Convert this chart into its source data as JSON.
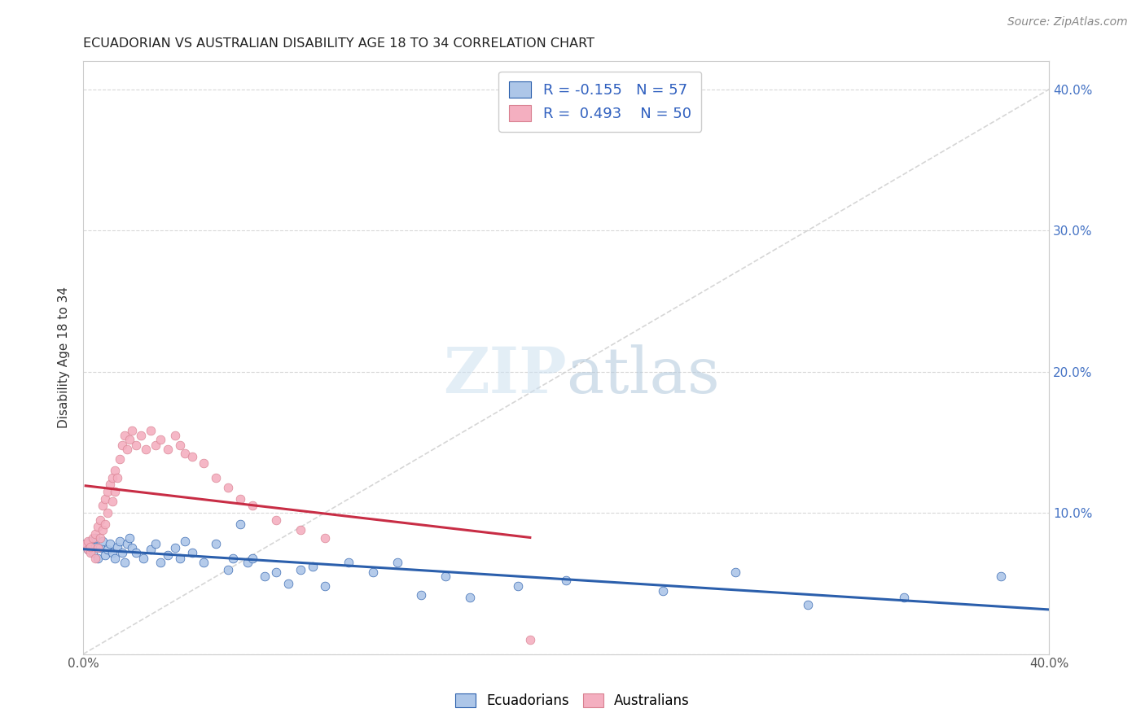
{
  "title": "ECUADORIAN VS AUSTRALIAN DISABILITY AGE 18 TO 34 CORRELATION CHART",
  "source": "Source: ZipAtlas.com",
  "ylabel": "Disability Age 18 to 34",
  "xmin": 0.0,
  "xmax": 0.4,
  "ymin": 0.0,
  "ymax": 0.42,
  "r_ecuadorian": -0.155,
  "n_ecuadorian": 57,
  "r_australian": 0.493,
  "n_australian": 50,
  "color_ecuadorian": "#adc6e8",
  "color_australian": "#f4afc0",
  "line_color_ecuadorian": "#2b5fac",
  "line_color_australian": "#c82d45",
  "legend_text_color": "#3060bf",
  "background_color": "#ffffff",
  "grid_color": "#d8d8d8",
  "ytick_color": "#4472c4",
  "ecuadorian_x": [
    0.001,
    0.002,
    0.003,
    0.004,
    0.005,
    0.005,
    0.006,
    0.007,
    0.008,
    0.009,
    0.01,
    0.011,
    0.012,
    0.013,
    0.014,
    0.015,
    0.016,
    0.017,
    0.018,
    0.019,
    0.02,
    0.022,
    0.025,
    0.028,
    0.03,
    0.032,
    0.035,
    0.038,
    0.04,
    0.042,
    0.045,
    0.05,
    0.055,
    0.06,
    0.062,
    0.065,
    0.068,
    0.07,
    0.075,
    0.08,
    0.085,
    0.09,
    0.095,
    0.1,
    0.11,
    0.12,
    0.13,
    0.14,
    0.15,
    0.16,
    0.18,
    0.2,
    0.24,
    0.27,
    0.3,
    0.34,
    0.38
  ],
  "ecuadorian_y": [
    0.078,
    0.074,
    0.08,
    0.072,
    0.076,
    0.082,
    0.068,
    0.075,
    0.08,
    0.07,
    0.074,
    0.078,
    0.072,
    0.068,
    0.076,
    0.08,
    0.072,
    0.065,
    0.078,
    0.082,
    0.075,
    0.072,
    0.068,
    0.074,
    0.078,
    0.065,
    0.07,
    0.075,
    0.068,
    0.08,
    0.072,
    0.065,
    0.078,
    0.06,
    0.068,
    0.092,
    0.065,
    0.068,
    0.055,
    0.058,
    0.05,
    0.06,
    0.062,
    0.048,
    0.065,
    0.058,
    0.065,
    0.042,
    0.055,
    0.04,
    0.048,
    0.052,
    0.045,
    0.058,
    0.035,
    0.04,
    0.055
  ],
  "australian_x": [
    0.001,
    0.002,
    0.002,
    0.003,
    0.003,
    0.004,
    0.005,
    0.005,
    0.006,
    0.006,
    0.007,
    0.007,
    0.008,
    0.008,
    0.009,
    0.009,
    0.01,
    0.01,
    0.011,
    0.012,
    0.012,
    0.013,
    0.013,
    0.014,
    0.015,
    0.016,
    0.017,
    0.018,
    0.019,
    0.02,
    0.022,
    0.024,
    0.026,
    0.028,
    0.03,
    0.032,
    0.035,
    0.038,
    0.04,
    0.042,
    0.045,
    0.05,
    0.055,
    0.06,
    0.065,
    0.07,
    0.08,
    0.09,
    0.1,
    0.185
  ],
  "australian_y": [
    0.078,
    0.074,
    0.08,
    0.072,
    0.076,
    0.082,
    0.068,
    0.085,
    0.075,
    0.09,
    0.082,
    0.095,
    0.088,
    0.105,
    0.092,
    0.11,
    0.1,
    0.115,
    0.12,
    0.108,
    0.125,
    0.115,
    0.13,
    0.125,
    0.138,
    0.148,
    0.155,
    0.145,
    0.152,
    0.158,
    0.148,
    0.155,
    0.145,
    0.158,
    0.148,
    0.152,
    0.145,
    0.155,
    0.148,
    0.142,
    0.14,
    0.135,
    0.125,
    0.118,
    0.11,
    0.105,
    0.095,
    0.088,
    0.082,
    0.01
  ],
  "ref_line_x": [
    0.0,
    0.4
  ],
  "ref_line_y": [
    0.0,
    0.4
  ],
  "yticks": [
    0.0,
    0.1,
    0.2,
    0.3,
    0.4
  ],
  "ytick_labels": [
    "",
    "10.0%",
    "20.0%",
    "30.0%",
    "40.0%"
  ],
  "xticks": [
    0.0,
    0.1,
    0.2,
    0.3,
    0.4
  ],
  "xtick_labels": [
    "0.0%",
    "",
    "",
    "",
    "40.0%"
  ]
}
